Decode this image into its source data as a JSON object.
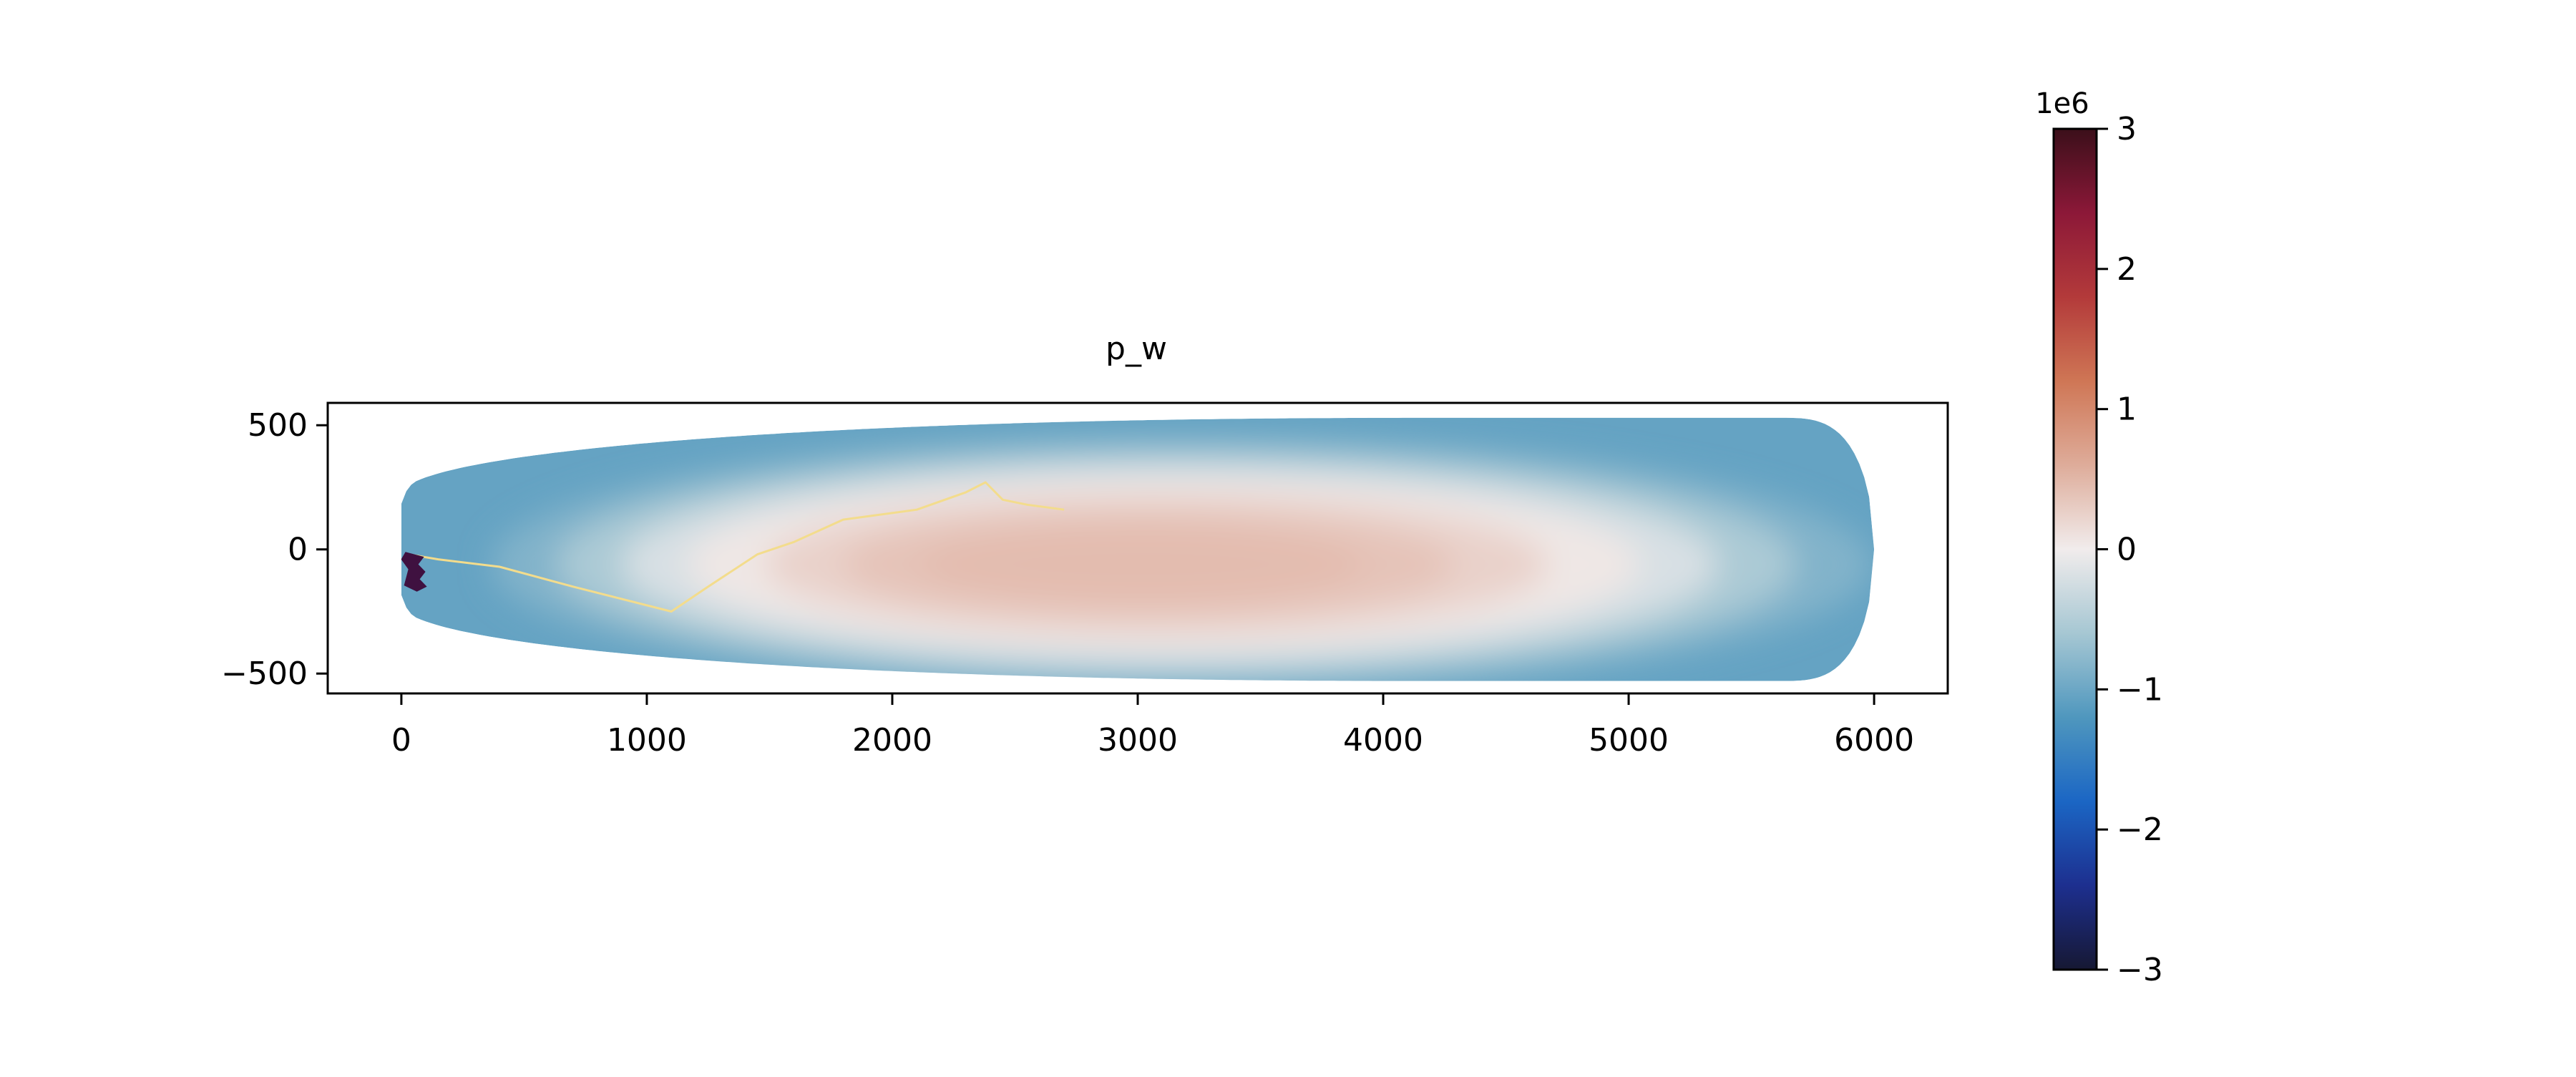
{
  "chart_data": {
    "type": "heatmap",
    "title": "p_w",
    "xlabel": "",
    "ylabel": "",
    "xlim": [
      -300,
      6300
    ],
    "ylim": [
      -580,
      590
    ],
    "x_ticks": [
      0,
      1000,
      2000,
      3000,
      4000,
      5000,
      6000
    ],
    "x_tick_labels": [
      "0",
      "1000",
      "2000",
      "3000",
      "4000",
      "5000",
      "6000"
    ],
    "y_ticks": [
      500,
      0,
      -500
    ],
    "y_tick_labels": [
      "500",
      "0",
      "−500"
    ],
    "grid": false,
    "colorbar": {
      "colormap": "balance",
      "range": [
        -3000000,
        3000000
      ],
      "offset_label": "1e6",
      "ticks": [
        3,
        2,
        1,
        0,
        -1,
        -2,
        -3
      ],
      "tick_labels": [
        "3",
        "2",
        "1",
        "0",
        "−1",
        "−2",
        "−3"
      ],
      "stops": [
        {
          "v": -3,
          "color": "#161833"
        },
        {
          "v": -2.4,
          "color": "#1d2f8f"
        },
        {
          "v": -1.8,
          "color": "#1b66c4"
        },
        {
          "v": -1.2,
          "color": "#4f97be"
        },
        {
          "v": -0.6,
          "color": "#a6c7d3"
        },
        {
          "v": 0,
          "color": "#f1ecec"
        },
        {
          "v": 0.6,
          "color": "#deac9a"
        },
        {
          "v": 1.2,
          "color": "#cf7655"
        },
        {
          "v": 1.8,
          "color": "#b33a3a"
        },
        {
          "v": 2.4,
          "color": "#8c1838"
        },
        {
          "v": 3,
          "color": "#3b0f1a"
        }
      ]
    },
    "field": {
      "description_values_in_1e6": true,
      "core_value": 0.45,
      "core_center_x": 3200,
      "core_center_y": -60,
      "boundary_value": -1.05,
      "far_end_value": -0.55
    },
    "domain_outline": {
      "x_left": 0,
      "x_right": 6000,
      "y_half_width_max": 530,
      "y_half_width_left": 220
    },
    "fracture_trace": {
      "color": "#f3dc8c",
      "points": [
        [
          30,
          -20
        ],
        [
          150,
          -40
        ],
        [
          400,
          -70
        ],
        [
          700,
          -150
        ],
        [
          1100,
          -250
        ],
        [
          1250,
          -150
        ],
        [
          1450,
          -20
        ],
        [
          1600,
          30
        ],
        [
          1800,
          120
        ],
        [
          2100,
          160
        ],
        [
          2300,
          230
        ],
        [
          2380,
          270
        ],
        [
          2450,
          200
        ],
        [
          2550,
          180
        ],
        [
          2700,
          160
        ]
      ]
    },
    "injection_zone": {
      "color": "#3f1140",
      "x": 40,
      "y_min": -170,
      "y_max": -10
    }
  }
}
